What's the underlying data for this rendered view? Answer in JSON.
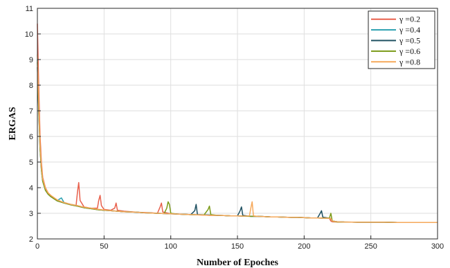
{
  "chart_data": {
    "type": "line",
    "title": "",
    "xlabel": "Number of Epoches",
    "ylabel": "ERGAS",
    "xlim": [
      0,
      300
    ],
    "ylim": [
      2,
      11
    ],
    "xticks": [
      0,
      50,
      100,
      150,
      200,
      250,
      300
    ],
    "yticks": [
      2,
      3,
      4,
      5,
      6,
      7,
      8,
      9,
      10,
      11
    ],
    "grid": true,
    "legend_position": "top-right",
    "series": [
      {
        "name": "γ =0.2",
        "color": "#e8604c",
        "x": [
          0,
          1,
          2,
          3,
          4,
          6,
          8,
          10,
          15,
          20,
          25,
          29,
          30,
          31,
          32,
          35,
          40,
          45,
          46,
          47,
          48,
          50,
          55,
          58,
          59,
          60,
          65,
          70,
          75,
          80,
          85,
          90,
          92,
          93,
          94,
          100,
          105,
          110,
          115,
          120,
          125,
          130,
          135,
          140,
          145,
          150,
          155,
          160,
          165,
          170,
          175,
          180,
          185,
          190,
          195,
          200,
          205,
          210,
          215,
          219,
          220,
          221,
          225,
          230,
          240,
          250,
          260,
          270,
          280,
          290,
          300
        ],
        "y": [
          10.4,
          8.0,
          6.0,
          5.0,
          4.4,
          4.0,
          3.8,
          3.7,
          3.5,
          3.42,
          3.35,
          3.3,
          3.8,
          4.2,
          3.5,
          3.25,
          3.2,
          3.2,
          3.5,
          3.7,
          3.3,
          3.15,
          3.12,
          3.2,
          3.4,
          3.12,
          3.08,
          3.06,
          3.04,
          3.03,
          3.02,
          3.0,
          3.25,
          3.4,
          3.05,
          2.98,
          2.97,
          2.96,
          2.95,
          2.94,
          2.93,
          2.92,
          2.92,
          2.91,
          2.9,
          2.9,
          2.89,
          2.88,
          2.88,
          2.87,
          2.86,
          2.86,
          2.85,
          2.84,
          2.84,
          2.83,
          2.82,
          2.82,
          2.81,
          2.8,
          2.7,
          2.67,
          2.66,
          2.66,
          2.65,
          2.65,
          2.65,
          2.64,
          2.64,
          2.64,
          2.64
        ]
      },
      {
        "name": "γ =0.4",
        "color": "#2aa0b0",
        "x": [
          0,
          1,
          2,
          3,
          4,
          6,
          8,
          10,
          15,
          18,
          20,
          25,
          30,
          35,
          40,
          45,
          50,
          55,
          60,
          65,
          70,
          75,
          80,
          85,
          90,
          95,
          100,
          105,
          110,
          115,
          120,
          125,
          130,
          135,
          140,
          145,
          150,
          155,
          160,
          165,
          170,
          175,
          180,
          185,
          190,
          195,
          200,
          205,
          210,
          215,
          220,
          221,
          225,
          230,
          240,
          250,
          260,
          270,
          280,
          290,
          300
        ],
        "y": [
          9.0,
          7.2,
          5.6,
          4.8,
          4.3,
          3.95,
          3.78,
          3.68,
          3.5,
          3.6,
          3.42,
          3.35,
          3.3,
          3.22,
          3.2,
          3.15,
          3.12,
          3.1,
          3.08,
          3.06,
          3.05,
          3.04,
          3.02,
          3.01,
          3.0,
          2.99,
          2.98,
          2.97,
          2.96,
          2.95,
          2.94,
          2.94,
          2.93,
          2.92,
          2.91,
          2.9,
          2.9,
          2.89,
          2.88,
          2.88,
          2.87,
          2.86,
          2.86,
          2.85,
          2.84,
          2.84,
          2.83,
          2.82,
          2.82,
          2.81,
          2.8,
          2.7,
          2.67,
          2.66,
          2.65,
          2.65,
          2.65,
          2.64,
          2.64,
          2.64,
          2.64
        ]
      },
      {
        "name": "γ =0.5",
        "color": "#1d4f60",
        "x": [
          0,
          1,
          2,
          3,
          4,
          6,
          8,
          10,
          15,
          20,
          25,
          30,
          35,
          40,
          45,
          50,
          55,
          60,
          65,
          70,
          75,
          80,
          85,
          90,
          95,
          100,
          105,
          110,
          115,
          118,
          119,
          120,
          125,
          130,
          135,
          140,
          145,
          150,
          152,
          153,
          154,
          160,
          165,
          170,
          175,
          180,
          185,
          190,
          195,
          200,
          205,
          210,
          212,
          213,
          214,
          220,
          221,
          225,
          230,
          240,
          250,
          260,
          270,
          280,
          290,
          300
        ],
        "y": [
          8.7,
          7.0,
          5.5,
          4.7,
          4.25,
          3.9,
          3.75,
          3.65,
          3.48,
          3.4,
          3.33,
          3.28,
          3.22,
          3.18,
          3.14,
          3.12,
          3.1,
          3.08,
          3.06,
          3.05,
          3.04,
          3.02,
          3.01,
          3.0,
          2.99,
          2.98,
          2.97,
          2.96,
          2.95,
          3.1,
          3.35,
          2.95,
          2.94,
          2.93,
          2.92,
          2.91,
          2.9,
          2.9,
          3.1,
          3.25,
          2.92,
          2.88,
          2.88,
          2.87,
          2.86,
          2.86,
          2.85,
          2.84,
          2.84,
          2.83,
          2.82,
          2.82,
          3.0,
          3.1,
          2.85,
          2.8,
          2.7,
          2.67,
          2.66,
          2.65,
          2.65,
          2.65,
          2.64,
          2.64,
          2.64,
          2.64
        ]
      },
      {
        "name": "γ =0.6",
        "color": "#7a9a16",
        "x": [
          0,
          1,
          2,
          3,
          4,
          6,
          8,
          10,
          15,
          20,
          25,
          30,
          35,
          40,
          45,
          50,
          55,
          60,
          65,
          70,
          75,
          80,
          85,
          90,
          95,
          97,
          98,
          99,
          100,
          105,
          110,
          115,
          120,
          125,
          128,
          129,
          130,
          135,
          140,
          145,
          150,
          155,
          160,
          165,
          170,
          175,
          180,
          185,
          190,
          195,
          200,
          205,
          210,
          215,
          219,
          220,
          221,
          222,
          225,
          230,
          240,
          250,
          260,
          270,
          280,
          290,
          300
        ],
        "y": [
          8.9,
          7.1,
          5.5,
          4.7,
          4.25,
          3.9,
          3.75,
          3.65,
          3.48,
          3.4,
          3.33,
          3.28,
          3.22,
          3.18,
          3.14,
          3.12,
          3.1,
          3.08,
          3.06,
          3.05,
          3.04,
          3.02,
          3.01,
          3.0,
          2.99,
          3.2,
          3.45,
          3.35,
          3.0,
          2.97,
          2.96,
          2.95,
          2.94,
          2.94,
          3.15,
          3.28,
          2.95,
          2.92,
          2.91,
          2.9,
          2.9,
          2.89,
          2.88,
          2.88,
          2.87,
          2.86,
          2.86,
          2.85,
          2.84,
          2.84,
          2.83,
          2.82,
          2.82,
          2.81,
          2.82,
          3.0,
          2.72,
          2.68,
          2.66,
          2.66,
          2.65,
          2.65,
          2.65,
          2.64,
          2.64,
          2.64,
          2.64
        ]
      },
      {
        "name": "γ =0.8",
        "color": "#f6a85a",
        "x": [
          0,
          1,
          2,
          3,
          4,
          6,
          8,
          10,
          15,
          20,
          25,
          30,
          35,
          40,
          45,
          50,
          55,
          60,
          65,
          70,
          75,
          80,
          85,
          90,
          95,
          100,
          105,
          110,
          115,
          120,
          125,
          130,
          135,
          140,
          145,
          150,
          155,
          159,
          160,
          161,
          162,
          165,
          170,
          175,
          180,
          185,
          190,
          195,
          200,
          205,
          210,
          215,
          220,
          221,
          225,
          230,
          240,
          250,
          260,
          270,
          280,
          290,
          300
        ],
        "y": [
          9.2,
          7.4,
          5.7,
          4.85,
          4.35,
          3.98,
          3.8,
          3.7,
          3.52,
          3.42,
          3.35,
          3.3,
          3.24,
          3.2,
          3.16,
          3.13,
          3.1,
          3.08,
          3.06,
          3.05,
          3.04,
          3.02,
          3.01,
          3.0,
          2.99,
          2.98,
          2.97,
          2.96,
          2.95,
          2.94,
          2.93,
          2.92,
          2.92,
          2.91,
          2.9,
          2.9,
          2.89,
          2.9,
          3.2,
          3.45,
          2.9,
          2.88,
          2.87,
          2.86,
          2.86,
          2.85,
          2.84,
          2.84,
          2.83,
          2.82,
          2.82,
          2.81,
          2.8,
          2.7,
          2.67,
          2.66,
          2.65,
          2.65,
          2.65,
          2.64,
          2.64,
          2.64,
          2.64
        ]
      }
    ]
  }
}
